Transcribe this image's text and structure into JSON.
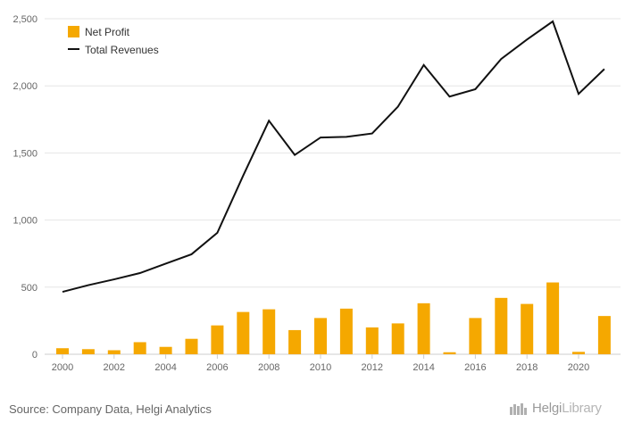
{
  "chart_data": {
    "type": "bar+line",
    "title": "",
    "xlabel": "",
    "ylabel": "",
    "ylim": [
      0,
      2500
    ],
    "yticks": [
      0,
      500,
      1000,
      1500,
      2000,
      2500
    ],
    "ytick_labels": [
      "0",
      "500",
      "1,000",
      "1,500",
      "2,000",
      "2,500"
    ],
    "xtick_labels": [
      "2000",
      "2002",
      "2004",
      "2006",
      "2008",
      "2010",
      "2012",
      "2014",
      "2016",
      "2018",
      "2020"
    ],
    "categories": [
      "2000",
      "2001",
      "2002",
      "2003",
      "2004",
      "2005",
      "2006",
      "2007",
      "2008",
      "2009",
      "2010",
      "2011",
      "2012",
      "2013",
      "2014",
      "2015",
      "2016",
      "2017",
      "2018",
      "2019",
      "2020",
      "2021"
    ],
    "grid": true,
    "legend_position": "top-left",
    "series": [
      {
        "name": "Net Profit",
        "type": "bar",
        "color": "#f5a800",
        "values": [
          45,
          38,
          30,
          90,
          55,
          115,
          215,
          315,
          335,
          180,
          270,
          340,
          200,
          230,
          380,
          15,
          270,
          420,
          375,
          535,
          18,
          285
        ]
      },
      {
        "name": "Total Revenues",
        "type": "line",
        "color": "#111111",
        "values": [
          465,
          515,
          558,
          605,
          675,
          745,
          905,
          1330,
          1740,
          1485,
          1615,
          1620,
          1645,
          1845,
          2155,
          1920,
          1975,
          2200,
          2345,
          2480,
          1940,
          2125
        ]
      }
    ]
  },
  "legend": {
    "items": [
      {
        "label": "Net Profit"
      },
      {
        "label": "Total Revenues"
      }
    ]
  },
  "footer": {
    "source": "Source: Company Data, Helgi Analytics",
    "logo_part1": "Helgi",
    "logo_part2": "Library"
  },
  "colors": {
    "bar": "#f5a800",
    "line": "#111111",
    "grid": "#e6e6e6"
  }
}
